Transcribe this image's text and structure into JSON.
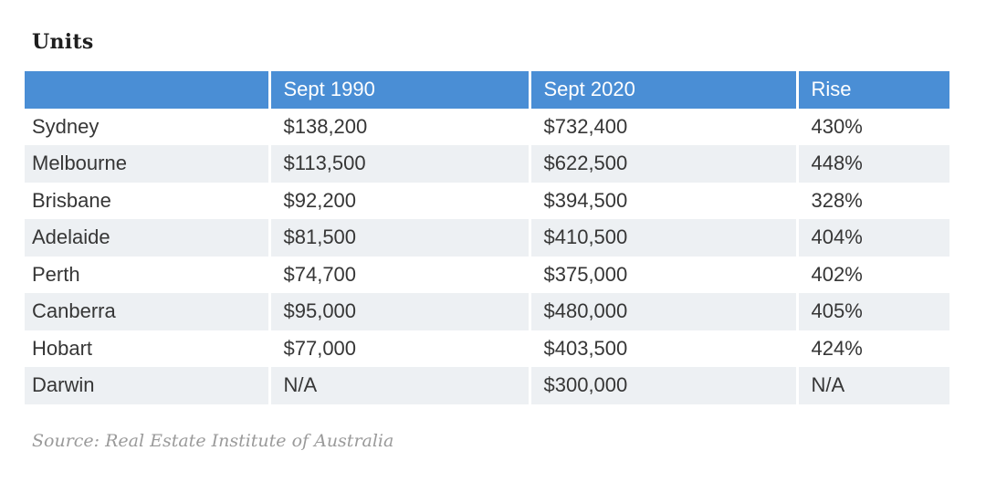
{
  "chart_data": {
    "type": "table",
    "title": "Units",
    "columns": [
      "",
      "Sept 1990",
      "Sept 2020",
      "Rise"
    ],
    "rows": [
      [
        "Sydney",
        "$138,200",
        "$732,400",
        "430%"
      ],
      [
        "Melbourne",
        "$113,500",
        "$622,500",
        "448%"
      ],
      [
        "Brisbane",
        "$92,200",
        "$394,500",
        "328%"
      ],
      [
        "Adelaide",
        "$81,500",
        "$410,500",
        "404%"
      ],
      [
        "Perth",
        "$74,700",
        "$375,000",
        "402%"
      ],
      [
        "Canberra",
        "$95,000",
        "$480,000",
        "405%"
      ],
      [
        "Hobart",
        "$77,000",
        "$403,500",
        "424%"
      ],
      [
        "Darwin",
        "N/A",
        "$300,000",
        "N/A"
      ]
    ],
    "source": "Source: Real Estate Institute of Australia",
    "layout": {
      "stripe_pattern": "alternating rows, first data row white",
      "legend_position": "none",
      "grid": "off"
    }
  },
  "colors": {
    "header_bg": "#4a8ed5",
    "header_text": "#ffffff",
    "row_alt_bg": "#edf0f3",
    "body_text": "#363636",
    "title_text": "#1e1e1e",
    "source_text": "#9a9a9a"
  }
}
